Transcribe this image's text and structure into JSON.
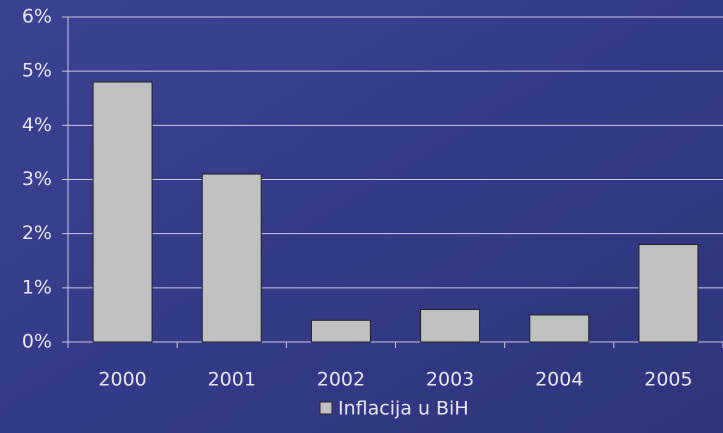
{
  "chart_data": {
    "type": "bar",
    "categories": [
      "2000",
      "2001",
      "2002",
      "2003",
      "2004",
      "2005"
    ],
    "series": [
      {
        "name": "Inflacija u BiH",
        "color": "#c0c0c0",
        "values": [
          4.8,
          3.1,
          0.4,
          0.6,
          0.5,
          1.8
        ]
      }
    ],
    "ylim": [
      0,
      6
    ],
    "yticks": [
      {
        "value": 0,
        "label": "0%"
      },
      {
        "value": 1,
        "label": "1%"
      },
      {
        "value": 2,
        "label": "2%"
      },
      {
        "value": 3,
        "label": "3%"
      },
      {
        "value": 4,
        "label": "4%"
      },
      {
        "value": 5,
        "label": "5%"
      },
      {
        "value": 6,
        "label": "6%"
      }
    ],
    "grid": true,
    "legend": "bottom"
  }
}
